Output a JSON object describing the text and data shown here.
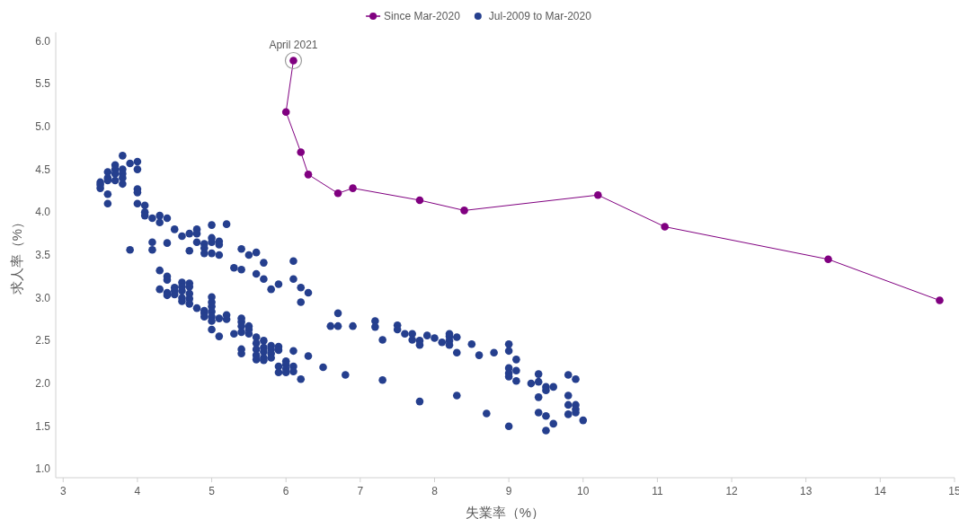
{
  "chart_data": {
    "type": "scatter",
    "xlabel": "失業率（%）",
    "ylabel": "求人率（%）",
    "xlim": [
      2.9,
      15
    ],
    "ylim": [
      0.9,
      6.1
    ],
    "xticks": [
      3,
      4,
      5,
      6,
      7,
      8,
      9,
      10,
      11,
      12,
      13,
      14,
      15
    ],
    "yticks": [
      {
        "value": 1,
        "label": "1.0"
      },
      {
        "value": 1.5,
        "label": "1.5"
      },
      {
        "value": 2,
        "label": "2.0"
      },
      {
        "value": 2.5,
        "label": "2.5"
      },
      {
        "value": 3,
        "label": "3.0"
      },
      {
        "value": 3.5,
        "label": "3.5"
      },
      {
        "value": 4,
        "label": "4.0"
      },
      {
        "value": 4.5,
        "label": "4.5"
      },
      {
        "value": 5,
        "label": "5.0"
      },
      {
        "value": 5.5,
        "label": "5.5"
      },
      {
        "value": 6,
        "label": "6.0"
      }
    ],
    "grid": false,
    "legend": "top",
    "marker": "circle",
    "annotations": [
      {
        "text": "April 2021",
        "x": 6.1,
        "y": 5.77
      }
    ],
    "series": [
      {
        "name": "Since Mar-2020",
        "type": "line",
        "color": "#800080",
        "x": [
          14.8,
          13.3,
          11.1,
          10.2,
          8.4,
          7.8,
          6.9,
          6.7,
          6.3,
          6.2,
          6.0,
          6.1
        ],
        "values": [
          2.97,
          3.45,
          3.83,
          4.2,
          4.02,
          4.14,
          4.28,
          4.22,
          4.44,
          4.7,
          5.17,
          5.77
        ]
      },
      {
        "name": "Jul-2009 to Mar-2020",
        "type": "scatter",
        "color": "#253f8e",
        "x": [
          3.5,
          3.5,
          3.5,
          3.6,
          3.6,
          3.6,
          3.6,
          3.6,
          3.7,
          3.7,
          3.7,
          3.7,
          3.8,
          3.8,
          3.8,
          3.8,
          3.8,
          3.9,
          3.9,
          4.0,
          4.0,
          4.0,
          4.0,
          4.0,
          4.1,
          4.1,
          4.1,
          4.2,
          4.2,
          4.2,
          4.3,
          4.3,
          4.3,
          4.3,
          4.4,
          4.4,
          4.4,
          4.4,
          4.4,
          4.4,
          4.5,
          4.5,
          4.5,
          4.5,
          4.6,
          4.6,
          4.6,
          4.6,
          4.6,
          4.6,
          4.7,
          4.7,
          4.7,
          4.7,
          4.7,
          4.7,
          4.7,
          4.8,
          4.8,
          4.8,
          4.8,
          4.9,
          4.9,
          4.9,
          4.9,
          4.9,
          4.9,
          5.0,
          5.0,
          5.0,
          5.0,
          5.0,
          5.0,
          5.0,
          5.0,
          5.0,
          5.0,
          5.0,
          5.1,
          5.1,
          5.1,
          5.1,
          5.1,
          5.2,
          5.2,
          5.2,
          5.3,
          5.3,
          5.4,
          5.4,
          5.4,
          5.4,
          5.4,
          5.4,
          5.4,
          5.4,
          5.5,
          5.5,
          5.5,
          5.5,
          5.6,
          5.6,
          5.6,
          5.6,
          5.6,
          5.6,
          5.6,
          5.7,
          5.7,
          5.7,
          5.7,
          5.7,
          5.7,
          5.7,
          5.8,
          5.8,
          5.8,
          5.8,
          5.8,
          5.9,
          5.9,
          5.9,
          5.9,
          5.9,
          6.0,
          6.0,
          6.0,
          6.0,
          6.1,
          6.1,
          6.1,
          6.1,
          6.1,
          6.2,
          6.2,
          6.2,
          6.3,
          6.3,
          6.5,
          6.6,
          6.7,
          6.7,
          6.8,
          6.9,
          7.2,
          7.2,
          7.3,
          7.3,
          7.5,
          7.5,
          7.6,
          7.7,
          7.7,
          7.8,
          7.8,
          7.8,
          7.9,
          8.0,
          8.1,
          8.2,
          8.2,
          8.2,
          8.2,
          8.3,
          8.3,
          8.3,
          8.5,
          8.6,
          8.7,
          8.8,
          9.0,
          9.0,
          9.0,
          9.0,
          9.0,
          9.0,
          9.1,
          9.1,
          9.1,
          9.3,
          9.4,
          9.4,
          9.4,
          9.4,
          9.5,
          9.5,
          9.5,
          9.5,
          9.6,
          9.6,
          9.8,
          9.8,
          9.8,
          9.8,
          9.9,
          9.9,
          9.9,
          9.9,
          10.0
        ],
        "values": [
          4.35,
          4.28,
          4.32,
          4.47,
          4.4,
          4.37,
          4.21,
          4.1,
          4.55,
          4.5,
          4.45,
          4.37,
          4.66,
          4.5,
          4.45,
          4.4,
          4.33,
          4.57,
          3.56,
          4.59,
          4.5,
          4.27,
          4.23,
          4.1,
          4.08,
          4.0,
          3.96,
          3.93,
          3.65,
          3.56,
          3.96,
          3.88,
          3.32,
          3.1,
          3.93,
          3.64,
          3.25,
          3.21,
          3.06,
          3.03,
          3.8,
          3.12,
          3.08,
          3.04,
          3.72,
          3.18,
          3.13,
          3.08,
          3.0,
          2.96,
          3.75,
          3.55,
          3.17,
          3.13,
          3.05,
          2.99,
          2.93,
          3.8,
          3.75,
          3.65,
          2.88,
          3.63,
          3.58,
          3.52,
          2.85,
          2.82,
          2.78,
          3.85,
          3.7,
          3.65,
          3.52,
          3.01,
          2.95,
          2.9,
          2.84,
          2.78,
          2.73,
          2.63,
          3.66,
          3.62,
          3.5,
          2.76,
          2.55,
          3.86,
          2.8,
          2.75,
          3.35,
          2.58,
          3.57,
          3.33,
          2.76,
          2.72,
          2.67,
          2.6,
          2.4,
          2.35,
          3.5,
          2.67,
          2.63,
          2.58,
          3.53,
          3.28,
          2.54,
          2.47,
          2.4,
          2.33,
          2.28,
          3.41,
          3.22,
          2.5,
          2.42,
          2.37,
          2.3,
          2.27,
          3.1,
          2.44,
          2.4,
          2.35,
          2.3,
          3.16,
          2.43,
          2.39,
          2.2,
          2.13,
          2.26,
          2.22,
          2.17,
          2.13,
          3.43,
          3.22,
          2.38,
          2.2,
          2.14,
          3.12,
          2.95,
          2.05,
          3.06,
          2.32,
          2.19,
          2.67,
          2.82,
          2.67,
          2.1,
          2.67,
          2.73,
          2.66,
          2.51,
          2.04,
          2.68,
          2.63,
          2.58,
          2.58,
          2.51,
          2.5,
          2.45,
          1.79,
          2.56,
          2.53,
          2.48,
          2.58,
          2.55,
          2.5,
          2.45,
          2.54,
          2.36,
          1.86,
          2.46,
          2.33,
          1.65,
          2.36,
          2.46,
          2.38,
          2.18,
          2.12,
          2.08,
          1.5,
          2.28,
          2.15,
          2.03,
          2.0,
          2.11,
          2.02,
          1.84,
          1.66,
          1.96,
          1.92,
          1.62,
          1.45,
          1.96,
          1.53,
          2.1,
          1.86,
          1.75,
          1.64,
          2.05,
          1.75,
          1.7,
          1.66,
          1.57
        ]
      }
    ]
  }
}
